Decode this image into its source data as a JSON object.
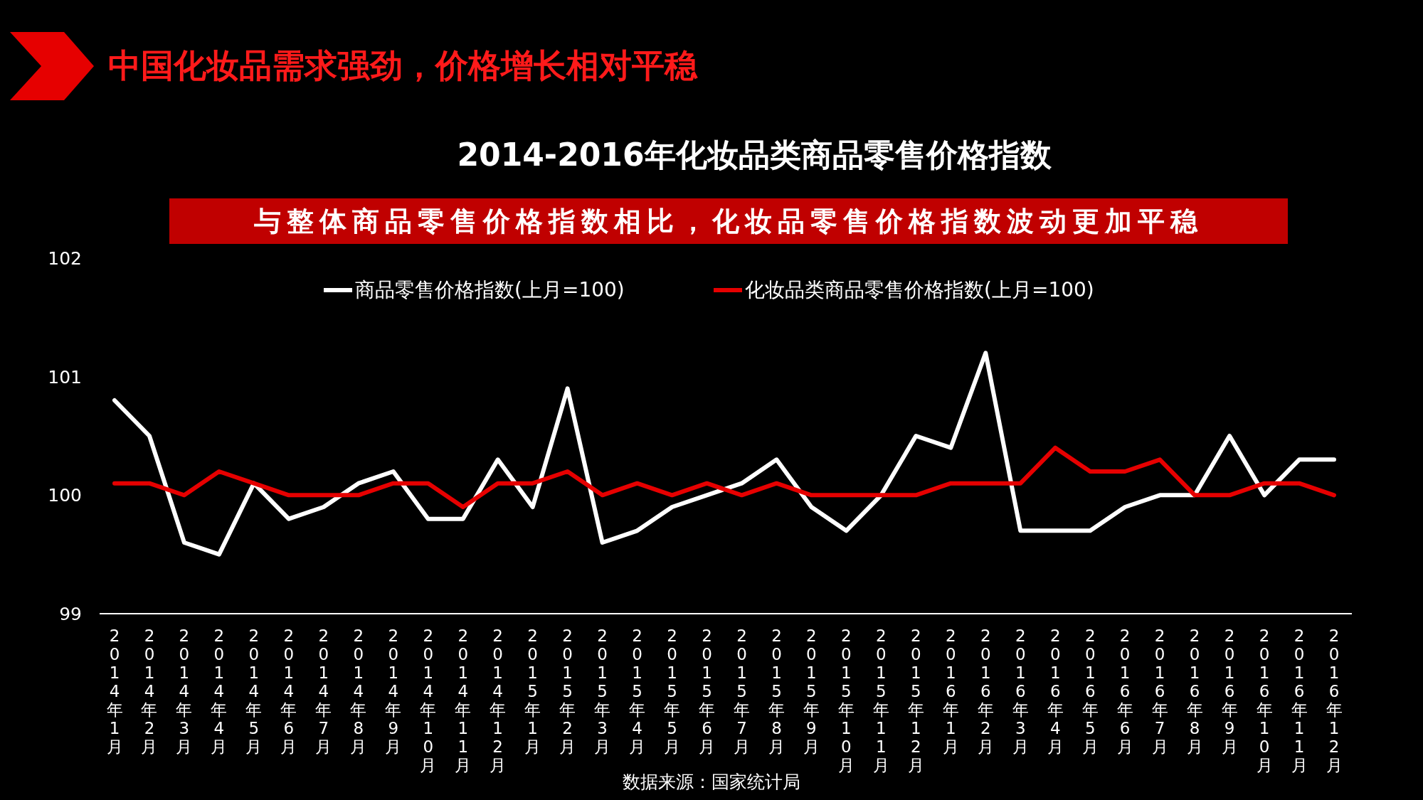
{
  "chart_data": {
    "type": "line",
    "title": "中国化妆品需求强劲，价格增长相对平稳",
    "subtitle": "2014-2016年化妆品类商品零售价格指数",
    "annotations": [
      "与整体商品零售价格指数相比，化妆品零售价格指数波动更加平稳",
      "数据来源：国家统计局"
    ],
    "categories": [
      "2014年1月",
      "2014年2月",
      "2014年3月",
      "2014年4月",
      "2014年5月",
      "2014年6月",
      "2014年7月",
      "2014年8月",
      "2014年9月",
      "2014年10月",
      "2014年11月",
      "2014年12月",
      "2015年1月",
      "2015年2月",
      "2015年3月",
      "2015年4月",
      "2015年5月",
      "2015年6月",
      "2015年7月",
      "2015年8月",
      "2015年9月",
      "2015年10月",
      "2015年11月",
      "2015年12月",
      "2016年1月",
      "2016年2月",
      "2016年3月",
      "2016年4月",
      "2016年5月",
      "2016年6月",
      "2016年7月",
      "2016年8月",
      "2016年9月",
      "2016年10月",
      "2016年11月",
      "2016年12月"
    ],
    "series": [
      {
        "name": "商品零售价格指数(上月=100)",
        "color": "#ffffff",
        "values": [
          100.8,
          100.5,
          99.6,
          99.5,
          100.1,
          99.8,
          99.9,
          100.1,
          100.2,
          99.8,
          99.8,
          100.3,
          99.9,
          100.9,
          99.6,
          99.7,
          99.9,
          100.0,
          100.1,
          100.3,
          99.9,
          99.7,
          100.0,
          100.5,
          100.4,
          101.2,
          99.7,
          99.7,
          99.7,
          99.9,
          100.0,
          100.0,
          100.5,
          100.0,
          100.3,
          100.3
        ]
      },
      {
        "name": "化妆品类商品零售价格指数(上月=100)",
        "color": "#e60000",
        "values": [
          100.1,
          100.1,
          100.0,
          100.2,
          100.1,
          100.0,
          100.0,
          100.0,
          100.1,
          100.1,
          99.9,
          100.1,
          100.1,
          100.2,
          100.0,
          100.1,
          100.0,
          100.1,
          100.0,
          100.1,
          100.0,
          100.0,
          100.0,
          100.0,
          100.1,
          100.1,
          100.1,
          100.4,
          100.2,
          100.2,
          100.3,
          100.0,
          100.0,
          100.1,
          100.1,
          100.0
        ]
      }
    ],
    "ylim": [
      99,
      102
    ],
    "yticks": [
      99,
      100,
      101,
      102
    ],
    "grid": false,
    "legend": "top",
    "marker": "none",
    "line_style": "solid"
  }
}
